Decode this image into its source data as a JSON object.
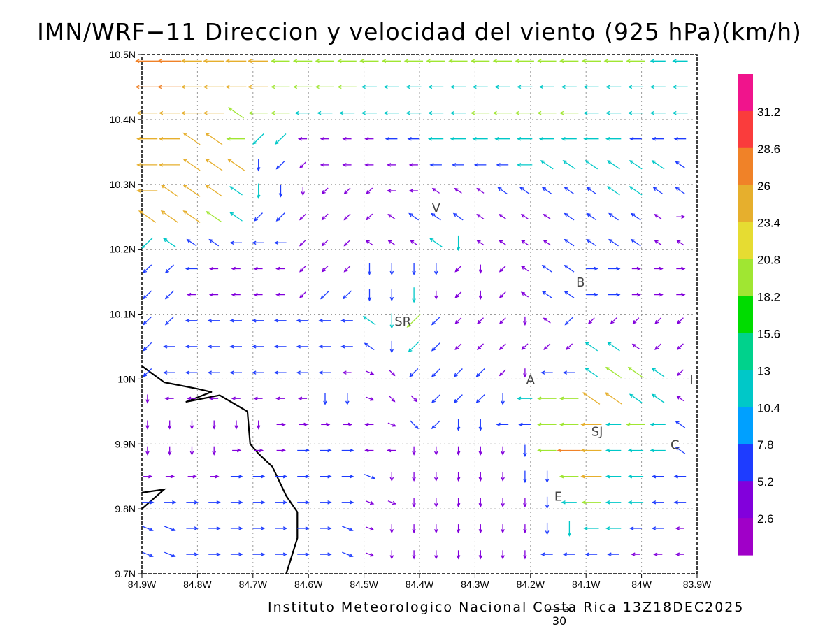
{
  "title": "IMN/WRF−11 Direccion y velocidad del viento (925 hPa)(km/h)",
  "footer": "Instituto Meteorologico Nacional Costa Rica 13Z18DEC2025",
  "map": {
    "x_labels": [
      "84.9W",
      "84.8W",
      "84.7W",
      "84.6W",
      "84.5W",
      "84.4W",
      "84.3W",
      "84.2W",
      "84.1W",
      "84W",
      "83.9W"
    ],
    "y_labels": [
      "10.5N",
      "10.4N",
      "10.3N",
      "10.2N",
      "10.1N",
      "10N",
      "9.9N",
      "9.8N",
      "9.7N"
    ],
    "lon_range": [
      -84.9,
      -83.9
    ],
    "lat_range": [
      9.7,
      10.5
    ],
    "grid": true,
    "places": [
      {
        "name": "V",
        "lon": -84.37,
        "lat": 10.265
      },
      {
        "name": "B",
        "lon": -84.11,
        "lat": 10.15
      },
      {
        "name": "SR",
        "lon": -84.43,
        "lat": 10.09
      },
      {
        "name": "A",
        "lon": -84.2,
        "lat": 10.0
      },
      {
        "name": "I",
        "lon": -83.91,
        "lat": 10.0
      },
      {
        "name": "SJ",
        "lon": -84.08,
        "lat": 9.92
      },
      {
        "name": "C",
        "lon": -83.94,
        "lat": 9.9
      },
      {
        "name": "E",
        "lon": -84.15,
        "lat": 9.82
      }
    ],
    "coastline": [
      [
        -84.9,
        10.02
      ],
      [
        -84.86,
        9.995
      ],
      [
        -84.8,
        9.985
      ],
      [
        -84.775,
        9.98
      ],
      [
        -84.82,
        9.965
      ],
      [
        -84.76,
        9.975
      ],
      [
        -84.73,
        9.96
      ],
      [
        -84.71,
        9.95
      ],
      [
        -84.705,
        9.9
      ],
      [
        -84.69,
        9.885
      ],
      [
        -84.665,
        9.865
      ],
      [
        -84.64,
        9.82
      ],
      [
        -84.62,
        9.795
      ],
      [
        -84.62,
        9.755
      ],
      [
        -84.64,
        9.7
      ]
    ],
    "coast_spur": [
      [
        -84.9,
        9.825
      ],
      [
        -84.86,
        9.83
      ],
      [
        -84.9,
        9.8
      ]
    ],
    "reference_vector": {
      "label": "30",
      "speed": 30
    }
  },
  "legend": {
    "labels": [
      "31.2",
      "28.6",
      "26",
      "23.4",
      "20.8",
      "18.2",
      "15.6",
      "13",
      "10.4",
      "7.8",
      "5.2",
      "2.6"
    ],
    "colors": [
      "#f0148c",
      "#fa3c3c",
      "#f08228",
      "#e6af2d",
      "#e6dc32",
      "#a0e632",
      "#00dc00",
      "#00d28c",
      "#00c8c8",
      "#00a0ff",
      "#1e3cff",
      "#8200dc",
      "#a000c8"
    ]
  },
  "wind_field": {
    "units": "km/h",
    "rows_lat": [
      10.49,
      10.45,
      10.41,
      10.37,
      10.33,
      10.29,
      10.25,
      10.21,
      10.17,
      10.13,
      10.09,
      10.05,
      10.01,
      9.97,
      9.93,
      9.89,
      9.85,
      9.81,
      9.77,
      9.73
    ],
    "cols_lon": [
      -84.89,
      -84.85,
      -84.81,
      -84.77,
      -84.73,
      -84.69,
      -84.65,
      -84.61,
      -84.57,
      -84.53,
      -84.49,
      -84.45,
      -84.41,
      -84.37,
      -84.33,
      -84.29,
      -84.25,
      -84.21,
      -84.17,
      -84.13,
      -84.09,
      -84.05,
      -84.01,
      -83.97,
      -83.93
    ],
    "dir_code": [
      "wwwwwwwwwwwwwwwwwwwwwwwww",
      "wwwwwwwwwwwwwwwwwwwwwwwww",
      "wwwwqwwwwwwwwwwwwwwwwwwww",
      "wwqqwxxwwwwwwwwwwwwwwwwww",
      "wwqqqzxxwwwwwwwwwwqqqqqqq",
      "wqqqqzzzxxxwwqqqqqqqqqqqq",
      "qqqqqxxxxxxqqqqqqqqqqqqqe",
      "xqqqwwwxxxqqqqzqqqqqqqqqq",
      "xxwwwwwxxxzzzzxzxqqqeeeee",
      "xxwwwwwxxxzzzzxzxqqqeeeee",
      "xxwwwwwwwwqzxxxxxzqxxxxxx",
      "xwwwwwwwwwqzxxxxxxxxqqqxx",
      "xwwwwwwwwwdcxxxxxzwwqqqqx",
      "zwwwwwwwzzdccxxxzwwwqqqqq",
      "zzzzzzeeeewdcxzzwwwwwwwwq",
      "zzzzeeeeeewwzzzzzzwwwwwwq",
      "eeeeeeeeeedzzzzzzzzwwwwww",
      "eeeeeeeeeeddzzzzzzzwwwwww",
      "ddeeeeeeeddzzzzzzzzzwwwww",
      "ddeeeeeeeddzzzzzzzwwwwwww"
    ],
    "speed_code": [
      "ffeeeedddddddddddddddddcc",
      "ffeeeeddddccccccccccccccc",
      "eeeedddccccccccdddddccccc",
      "eeeedccaaaabbcccccccccbbb",
      "eeeeebbaaaaaabbbbcccccccb",
      "eeeeccbaaaaaaaaabbbbbccbb",
      "eeedcbbaaaaabbbaaaabbbbaa",
      "ccbbbbbaaaaaaccaaaabbbbaa",
      "bbbaaaaaaabbbbaaaabbbbaaa",
      "bbaaaaaabbbbcaaaaabbbbaaa",
      "bbbbbbbbbbccdbaaaaabaaaaa",
      "bbbbbbbbbbbbcbaaaaaaccaaa",
      "bbbbbbbbbaaabbbbaabbcddca",
      "aaaaaaaabbaaabbbbcddeecca",
      "aaaaaaaaaaaabbbbbbddecdcb",
      "aaaaaaabbbaaaaaaabdfecccb",
      "aaaabbbbbbbaaaaaabbdeccbb",
      "bbbbbbbbbbaaaaaaaabcdccbb",
      "bbbbbbbbbbaaaaaaaabcccbba",
      "bbbbbbbbbbaaaaaaaabbbbaaa"
    ]
  }
}
